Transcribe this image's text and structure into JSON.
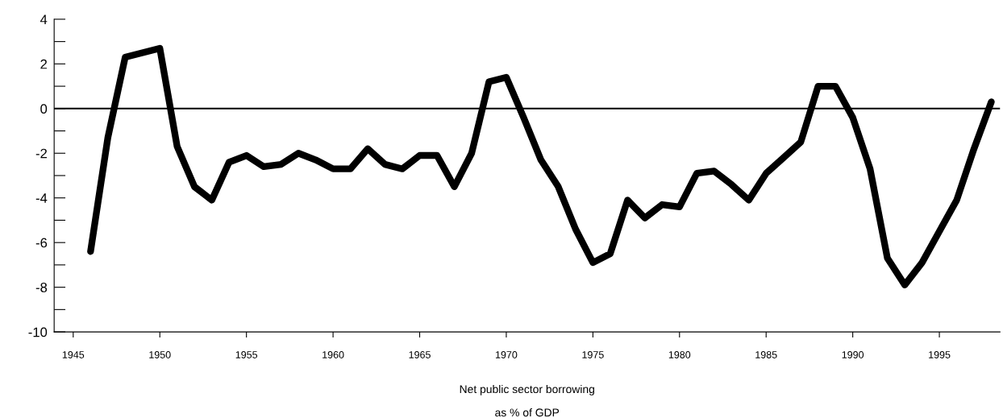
{
  "chart_data": {
    "type": "line",
    "xlabel": "Net public sector borrowing\nas % of GDP",
    "x": [
      1946,
      1947,
      1948,
      1949,
      1950,
      1951,
      1952,
      1953,
      1954,
      1955,
      1956,
      1957,
      1958,
      1959,
      1960,
      1961,
      1962,
      1963,
      1964,
      1965,
      1966,
      1967,
      1968,
      1969,
      1970,
      1971,
      1972,
      1973,
      1974,
      1975,
      1976,
      1977,
      1978,
      1979,
      1980,
      1981,
      1982,
      1983,
      1984,
      1985,
      1986,
      1987,
      1988,
      1989,
      1990,
      1991,
      1992,
      1993,
      1994,
      1995,
      1996,
      1997,
      1998
    ],
    "series": [
      {
        "color": "#000000",
        "values": [
          -6.4,
          -1.3,
          2.3,
          2.5,
          2.7,
          -1.7,
          -3.5,
          -4.1,
          -2.4,
          -2.1,
          -2.6,
          -2.5,
          -2.0,
          -2.3,
          -2.7,
          -2.7,
          -1.8,
          -2.5,
          -2.7,
          -2.1,
          -2.1,
          -3.5,
          -2.0,
          1.2,
          1.4,
          -0.4,
          -2.3,
          -3.5,
          -5.4,
          -6.9,
          -6.5,
          -4.1,
          -4.9,
          -4.3,
          -4.4,
          -2.9,
          -2.8,
          -3.4,
          -4.1,
          -2.9,
          -2.2,
          -1.5,
          1.0,
          1.0,
          -0.4,
          -2.7,
          -6.7,
          -7.9,
          -6.9,
          -5.5,
          -4.1,
          -1.8,
          0.3
        ]
      }
    ],
    "xlim": [
      1943.9,
      1998.5
    ],
    "xticks": [
      1945,
      1950,
      1955,
      1960,
      1965,
      1970,
      1975,
      1980,
      1985,
      1990,
      1995
    ],
    "ylim": [
      -10,
      4
    ],
    "yticks": [
      -10,
      {
        "value": -9,
        "label": null
      },
      -8,
      {
        "value": -7,
        "label": null
      },
      -6,
      {
        "value": -5,
        "label": null
      },
      -4,
      {
        "value": -3,
        "label": null
      },
      -2,
      {
        "value": -1,
        "label": null
      },
      0,
      {
        "value": 1,
        "label": null
      },
      2,
      {
        "value": 3,
        "label": null
      },
      4
    ],
    "ref_lines": [
      {
        "axis": "y",
        "value": 0,
        "color": "#000000"
      }
    ],
    "grid": false,
    "legend": false,
    "marker": "none",
    "line_style": "solid"
  }
}
